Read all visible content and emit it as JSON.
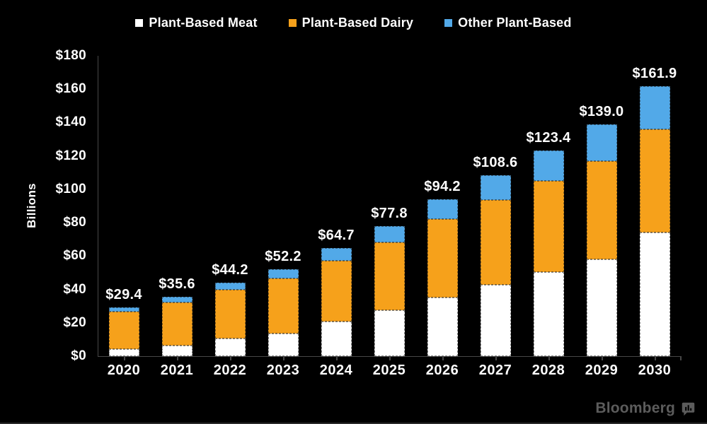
{
  "chart_data": {
    "type": "bar",
    "stacked": true,
    "title": "",
    "ylabel": "Billions",
    "xlabel": "",
    "grid": false,
    "legend_position": "top",
    "ylim": [
      0,
      180
    ],
    "y_tick_step": 20,
    "y_tick_labels": [
      "$0",
      "$20",
      "$40",
      "$60",
      "$80",
      "$100",
      "$120",
      "$140",
      "$160",
      "$180"
    ],
    "categories": [
      "2020",
      "2021",
      "2022",
      "2023",
      "2024",
      "2025",
      "2026",
      "2027",
      "2028",
      "2029",
      "2030"
    ],
    "series": [
      {
        "name": "Plant-Based Meat",
        "color": "#ffffff",
        "values": [
          4.2,
          6.3,
          10.8,
          13.4,
          20.6,
          27.7,
          35.0,
          42.7,
          50.5,
          58.1,
          74.0
        ]
      },
      {
        "name": "Plant-Based Dairy",
        "color": "#f6a11b",
        "values": [
          22.6,
          25.7,
          29.2,
          33.3,
          36.6,
          40.6,
          47.0,
          50.7,
          54.6,
          58.7,
          61.9
        ]
      },
      {
        "name": "Other Plant-Based",
        "color": "#52a9e8",
        "values": [
          2.6,
          3.6,
          4.2,
          5.5,
          7.5,
          9.5,
          12.2,
          15.2,
          18.3,
          22.2,
          26.0
        ]
      }
    ],
    "totals": [
      29.4,
      35.6,
      44.2,
      52.2,
      64.7,
      77.8,
      94.2,
      108.6,
      123.4,
      139.0,
      161.9
    ],
    "total_labels": [
      "$29.4",
      "$35.6",
      "$44.2",
      "$52.2",
      "$64.7",
      "$77.8",
      "$94.2",
      "$108.6",
      "$123.4",
      "$139.0",
      "$161.9"
    ]
  },
  "branding": {
    "source": "Bloomberg"
  },
  "colors": {
    "background": "#000000",
    "text": "#ffffff",
    "axis": "#474747",
    "brand": "#5c5c5c"
  }
}
